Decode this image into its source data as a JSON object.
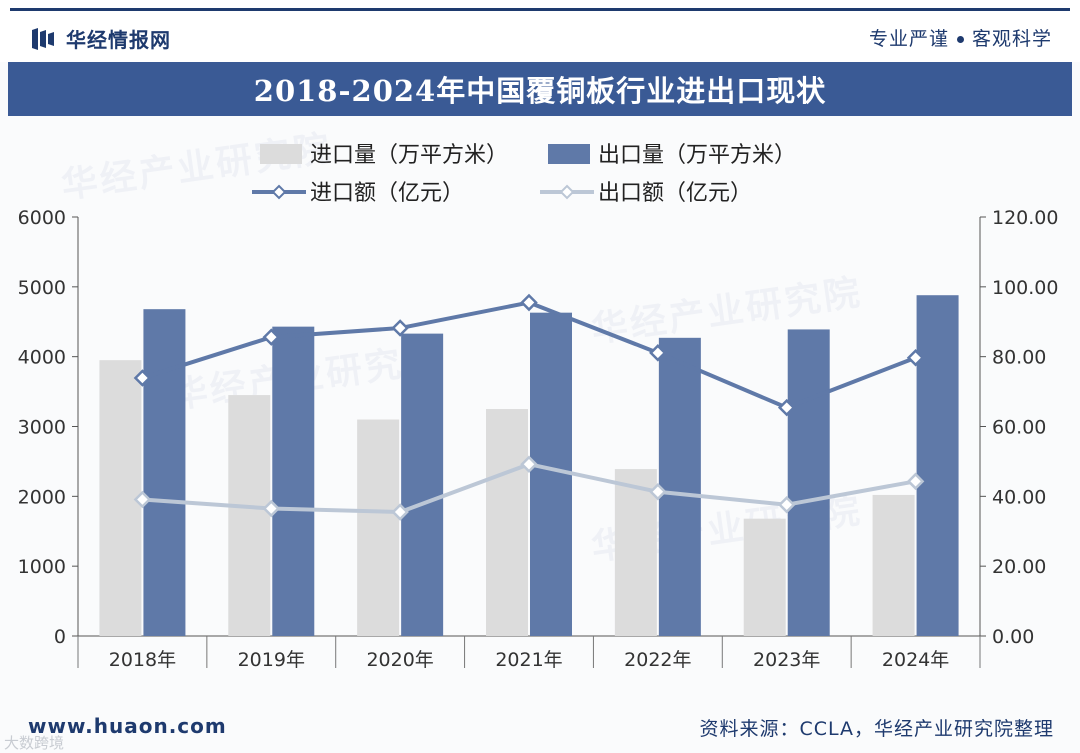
{
  "header": {
    "brand": "华经情报网",
    "slogan_left": "专业严谨",
    "slogan_right": "客观科学",
    "title": "2018-2024年中国覆铜板行业进出口现状"
  },
  "footer": {
    "site": "www.huaon.com",
    "source": "资料来源：CCLA，华经产业研究院整理",
    "corner_mark": "大数跨境"
  },
  "watermarks": [
    "华经产业研究院",
    "华经产业研究院",
    "华经产业研究院",
    "华经产业研究院"
  ],
  "colors": {
    "import_bar": "#dcdcdc",
    "export_bar": "#5f79a8",
    "import_line": "#5f79a8",
    "export_line": "#bcc7d6"
  },
  "chart_data": {
    "type": "bar+line",
    "title": "2018-2024年中国覆铜板行业进出口现状",
    "categories": [
      "2018年",
      "2019年",
      "2020年",
      "2021年",
      "2022年",
      "2023年",
      "2024年"
    ],
    "series": [
      {
        "name": "进口量（万平方米）",
        "kind": "bar",
        "axis": "left",
        "values": [
          3950,
          3450,
          3100,
          3250,
          2390,
          1680,
          2020
        ]
      },
      {
        "name": "出口量（万平方米）",
        "kind": "bar",
        "axis": "left",
        "values": [
          4680,
          4430,
          4330,
          4630,
          4270,
          4390,
          4880
        ]
      },
      {
        "name": "进口额（亿元）",
        "kind": "line",
        "axis": "right",
        "values": [
          73.9,
          85.6,
          88.2,
          95.5,
          81.1,
          65.4,
          79.7
        ]
      },
      {
        "name": "出口额（亿元）",
        "kind": "line",
        "axis": "right",
        "values": [
          39.1,
          36.5,
          35.5,
          49.2,
          41.3,
          37.6,
          44.3
        ]
      }
    ],
    "y_left": {
      "min": 0,
      "max": 6000,
      "ticks": [
        "0",
        "1000",
        "2000",
        "3000",
        "4000",
        "5000",
        "6000"
      ]
    },
    "y_right": {
      "min": 0,
      "max": 120,
      "ticks": [
        "0.00",
        "20.00",
        "40.00",
        "60.00",
        "80.00",
        "100.00",
        "120.00"
      ]
    },
    "legend_position": "top-center",
    "grid": false
  }
}
